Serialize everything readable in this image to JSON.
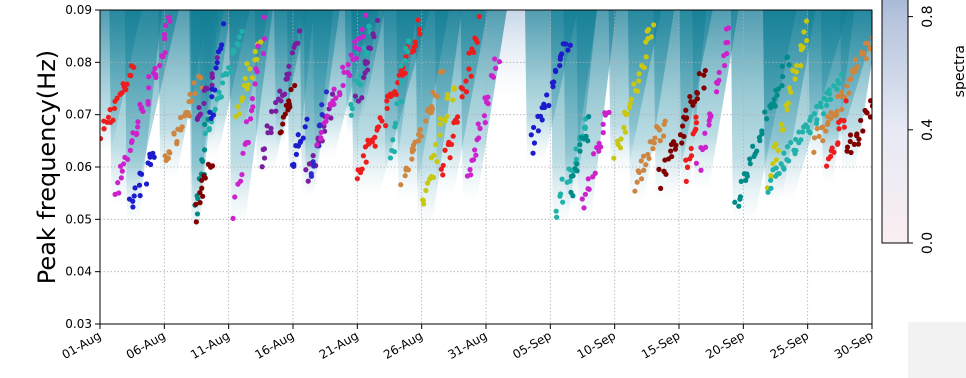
{
  "chart_data": {
    "type": "scatter",
    "title": "",
    "ylabel": "Peak frequency(Hz)",
    "xlabel": "",
    "ylim": [
      0.03,
      0.09
    ],
    "yticks": [
      "0.03",
      "0.04",
      "0.05",
      "0.06",
      "0.07",
      "0.08",
      "0.09"
    ],
    "xlim_days": [
      0,
      60
    ],
    "xticks": [
      "01-Aug",
      "06-Aug",
      "11-Aug",
      "16-Aug",
      "21-Aug",
      "26-Aug",
      "31-Aug",
      "05-Sep",
      "10-Sep",
      "15-Sep",
      "20-Sep",
      "25-Sep",
      "30-Sep"
    ],
    "grid": true,
    "background": "spectral density (blue shading)",
    "colorbar": {
      "label": "spectra",
      "ticks": [
        "0.0",
        "0.4",
        "0.8"
      ],
      "range": [
        0.0,
        1.0
      ],
      "colors": [
        "#fbeef2",
        "#e7eaf5",
        "#b5c3dc",
        "#8aa4c8"
      ]
    },
    "marker_colors": [
      "#ee1c1c",
      "#cc22cc",
      "#1c1ccc",
      "#cd853f",
      "#7a1ea0",
      "#20b2aa",
      "#c8c810",
      "#00b0b0",
      "#800000",
      "#2a2acd",
      "#008b8b"
    ],
    "series": [
      {
        "color": "#ee1c1c",
        "x": [
          0.0,
          2.6
        ],
        "y": [
          0.066,
          0.079
        ]
      },
      {
        "color": "#cc22cc",
        "x": [
          1.2,
          5.5
        ],
        "y": [
          0.056,
          0.087
        ]
      },
      {
        "color": "#1c1ccc",
        "x": [
          2.4,
          4.2
        ],
        "y": [
          0.052,
          0.063
        ]
      },
      {
        "color": "#cd853f",
        "x": [
          5.0,
          7.8
        ],
        "y": [
          0.061,
          0.077
        ]
      },
      {
        "color": "#7a1ea0",
        "x": [
          7.5,
          9.0
        ],
        "y": [
          0.069,
          0.079
        ]
      },
      {
        "color": "#008b8b",
        "x": [
          7.5,
          8.3
        ],
        "y": [
          0.051,
          0.068
        ]
      },
      {
        "color": "#20b2aa",
        "x": [
          8.2,
          11.0
        ],
        "y": [
          0.065,
          0.087
        ]
      },
      {
        "color": "#1c1ccc",
        "x": [
          8.5,
          9.5
        ],
        "y": [
          0.068,
          0.087
        ]
      },
      {
        "color": "#800000",
        "x": [
          7.4,
          8.6
        ],
        "y": [
          0.051,
          0.062
        ]
      },
      {
        "color": "#c8c810",
        "x": [
          10.5,
          12.5
        ],
        "y": [
          0.07,
          0.085
        ]
      },
      {
        "color": "#cc22cc",
        "x": [
          10.5,
          12.8
        ],
        "y": [
          0.052,
          0.087
        ]
      },
      {
        "color": "#7a1ea0",
        "x": [
          12.5,
          15.5
        ],
        "y": [
          0.062,
          0.085
        ]
      },
      {
        "color": "#800000",
        "x": [
          14.0,
          15.0
        ],
        "y": [
          0.067,
          0.075
        ]
      },
      {
        "color": "#1c1ccc",
        "x": [
          15.0,
          16.0
        ],
        "y": [
          0.061,
          0.068
        ]
      },
      {
        "color": "#7a1ea0",
        "x": [
          16.0,
          18.0
        ],
        "y": [
          0.058,
          0.072
        ]
      },
      {
        "color": "#2a2acd",
        "x": [
          16.3,
          17.5
        ],
        "y": [
          0.058,
          0.073
        ]
      },
      {
        "color": "#cc22cc",
        "x": [
          17.0,
          20.5
        ],
        "y": [
          0.065,
          0.087
        ]
      },
      {
        "color": "#20b2aa",
        "x": [
          19.5,
          21.0
        ],
        "y": [
          0.069,
          0.087
        ]
      },
      {
        "color": "#7a1ea0",
        "x": [
          20.0,
          21.5
        ],
        "y": [
          0.073,
          0.087
        ]
      },
      {
        "color": "#ee1c1c",
        "x": [
          20.0,
          25.0
        ],
        "y": [
          0.058,
          0.087
        ]
      },
      {
        "color": "#20b2aa",
        "x": [
          22.5,
          24.0
        ],
        "y": [
          0.061,
          0.085
        ]
      },
      {
        "color": "#cd853f",
        "x": [
          23.5,
          26.5
        ],
        "y": [
          0.057,
          0.077
        ]
      },
      {
        "color": "#c8c810",
        "x": [
          25.0,
          27.5
        ],
        "y": [
          0.052,
          0.077
        ]
      },
      {
        "color": "#ee1c1c",
        "x": [
          26.5,
          29.5
        ],
        "y": [
          0.058,
          0.087
        ]
      },
      {
        "color": "#cc22cc",
        "x": [
          28.5,
          31.0
        ],
        "y": [
          0.057,
          0.081
        ]
      },
      {
        "color": "#1c1ccc",
        "x": [
          33.5,
          36.5
        ],
        "y": [
          0.064,
          0.085
        ]
      },
      {
        "color": "#20b2aa",
        "x": [
          35.5,
          38.0
        ],
        "y": [
          0.052,
          0.07
        ]
      },
      {
        "color": "#008b8b",
        "x": [
          36.5,
          38.0
        ],
        "y": [
          0.055,
          0.068
        ]
      },
      {
        "color": "#cc22cc",
        "x": [
          37.5,
          39.5
        ],
        "y": [
          0.053,
          0.07
        ]
      },
      {
        "color": "#c8c810",
        "x": [
          40.0,
          43.0
        ],
        "y": [
          0.062,
          0.087
        ]
      },
      {
        "color": "#cd853f",
        "x": [
          41.5,
          44.0
        ],
        "y": [
          0.057,
          0.069
        ]
      },
      {
        "color": "#800000",
        "x": [
          43.5,
          47.0
        ],
        "y": [
          0.057,
          0.078
        ]
      },
      {
        "color": "#cc22cc",
        "x": [
          46.5,
          49.0
        ],
        "y": [
          0.059,
          0.087
        ]
      },
      {
        "color": "#ee1c1c",
        "x": [
          45.5,
          46.5
        ],
        "y": [
          0.058,
          0.07
        ]
      },
      {
        "color": "#008b8b",
        "x": [
          49.5,
          53.5
        ],
        "y": [
          0.053,
          0.081
        ]
      },
      {
        "color": "#c8c810",
        "x": [
          52.0,
          55.0
        ],
        "y": [
          0.057,
          0.087
        ]
      },
      {
        "color": "#20b2aa",
        "x": [
          52.0,
          57.5
        ],
        "y": [
          0.057,
          0.076
        ]
      },
      {
        "color": "#cd853f",
        "x": [
          55.5,
          60.0
        ],
        "y": [
          0.064,
          0.084
        ]
      },
      {
        "color": "#ee1c1c",
        "x": [
          56.5,
          58.0
        ],
        "y": [
          0.06,
          0.071
        ]
      },
      {
        "color": "#800000",
        "x": [
          58.0,
          60.0
        ],
        "y": [
          0.062,
          0.072
        ]
      }
    ]
  }
}
